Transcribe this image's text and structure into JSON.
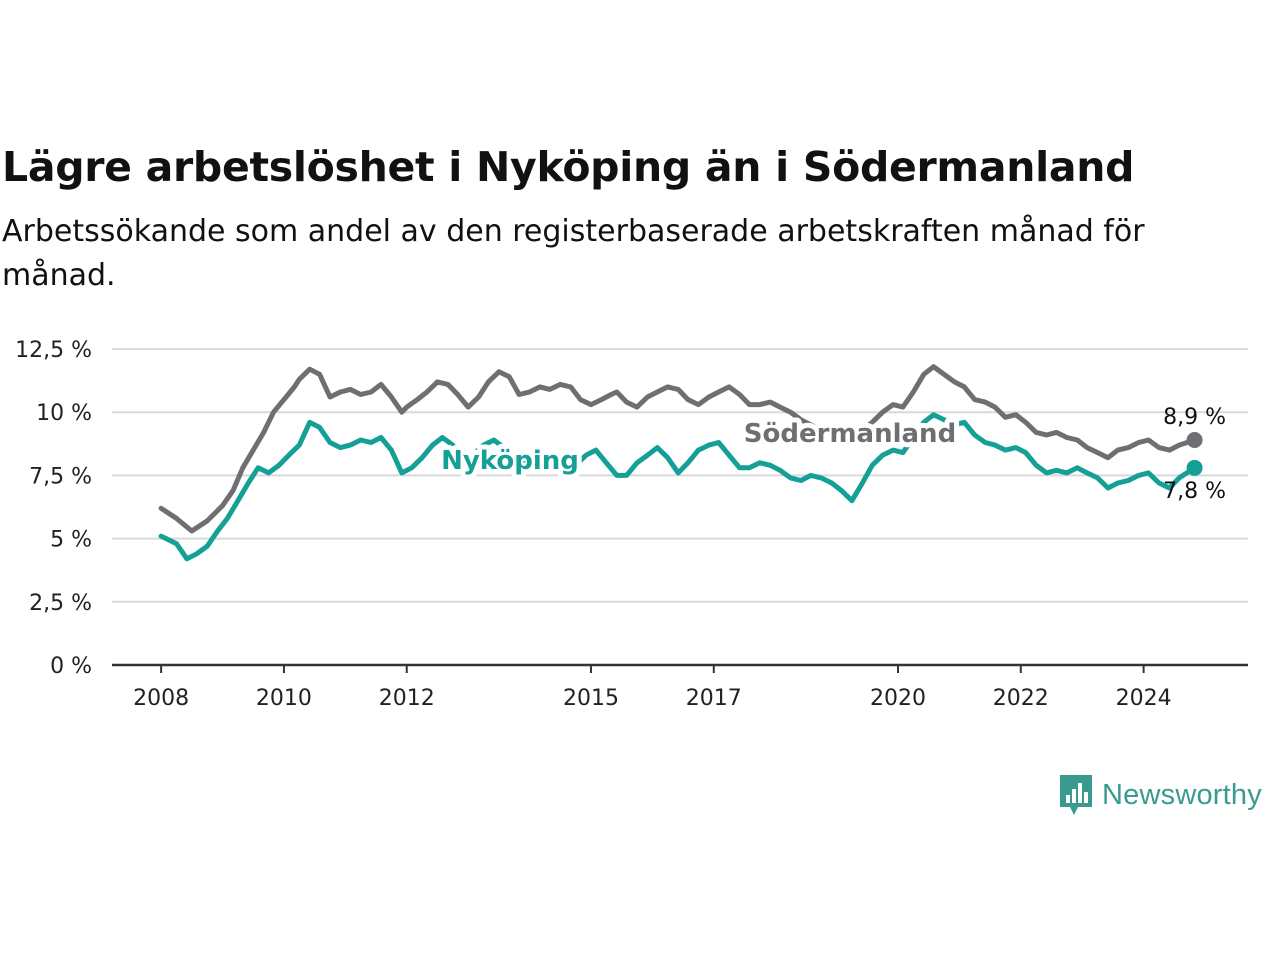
{
  "title": "Lägre arbetslöshet i Nyköping än i Södermanland",
  "subtitle": "Arbetssökande som andel av den registerbaserade arbetskraften månad för månad.",
  "brand": {
    "name": "Newsworthy",
    "color": "#3a9a90",
    "icon": "newsworthy-chart-bubble-icon"
  },
  "chart_data": {
    "type": "line",
    "ylim": [
      0,
      12.5
    ],
    "y_ticks": [
      {
        "value": 0,
        "label": "0 %"
      },
      {
        "value": 2.5,
        "label": "2,5 %"
      },
      {
        "value": 5,
        "label": "5 %"
      },
      {
        "value": 7.5,
        "label": "7,5 %"
      },
      {
        "value": 10,
        "label": "10 %"
      },
      {
        "value": 12.5,
        "label": "12,5 %"
      }
    ],
    "x_ticks": [
      {
        "value": 2008.0,
        "label": "2008"
      },
      {
        "value": 2010.0,
        "label": "2010"
      },
      {
        "value": 2012.0,
        "label": "2012"
      },
      {
        "value": 2015.0,
        "label": "2015"
      },
      {
        "value": 2017.0,
        "label": "2017"
      },
      {
        "value": 2020.0,
        "label": "2020"
      },
      {
        "value": 2022.0,
        "label": "2022"
      },
      {
        "value": 2024.0,
        "label": "2024"
      }
    ],
    "xlim": [
      2007.2,
      2025.7
    ],
    "grid": true,
    "series": [
      {
        "name": "Södermanland",
        "color": "#6e6e73",
        "end_label": "8,9 %",
        "points": [
          [
            2008.0,
            6.2
          ],
          [
            2008.25,
            5.8
          ],
          [
            2008.5,
            5.3
          ],
          [
            2008.75,
            5.7
          ],
          [
            2009.0,
            6.3
          ],
          [
            2009.17,
            6.9
          ],
          [
            2009.33,
            7.8
          ],
          [
            2009.5,
            8.5
          ],
          [
            2009.67,
            9.2
          ],
          [
            2009.83,
            10.0
          ],
          [
            2010.0,
            10.5
          ],
          [
            2010.17,
            11.0
          ],
          [
            2010.25,
            11.3
          ],
          [
            2010.42,
            11.7
          ],
          [
            2010.58,
            11.5
          ],
          [
            2010.75,
            10.6
          ],
          [
            2010.92,
            10.8
          ],
          [
            2011.08,
            10.9
          ],
          [
            2011.25,
            10.7
          ],
          [
            2011.42,
            10.8
          ],
          [
            2011.58,
            11.1
          ],
          [
            2011.75,
            10.6
          ],
          [
            2011.92,
            10.0
          ],
          [
            2012.0,
            10.2
          ],
          [
            2012.17,
            10.5
          ],
          [
            2012.33,
            10.8
          ],
          [
            2012.5,
            11.2
          ],
          [
            2012.67,
            11.1
          ],
          [
            2012.83,
            10.7
          ],
          [
            2013.0,
            10.2
          ],
          [
            2013.17,
            10.6
          ],
          [
            2013.33,
            11.2
          ],
          [
            2013.5,
            11.6
          ],
          [
            2013.67,
            11.4
          ],
          [
            2013.83,
            10.7
          ],
          [
            2014.0,
            10.8
          ],
          [
            2014.17,
            11.0
          ],
          [
            2014.33,
            10.9
          ],
          [
            2014.5,
            11.1
          ],
          [
            2014.67,
            11.0
          ],
          [
            2014.83,
            10.5
          ],
          [
            2015.0,
            10.3
          ],
          [
            2015.17,
            10.5
          ],
          [
            2015.33,
            10.7
          ],
          [
            2015.42,
            10.8
          ],
          [
            2015.58,
            10.4
          ],
          [
            2015.75,
            10.2
          ],
          [
            2015.92,
            10.6
          ],
          [
            2016.08,
            10.8
          ],
          [
            2016.25,
            11.0
          ],
          [
            2016.42,
            10.9
          ],
          [
            2016.58,
            10.5
          ],
          [
            2016.75,
            10.3
          ],
          [
            2016.92,
            10.6
          ],
          [
            2017.08,
            10.8
          ],
          [
            2017.25,
            11.0
          ],
          [
            2017.42,
            10.7
          ],
          [
            2017.58,
            10.3
          ],
          [
            2017.75,
            10.3
          ],
          [
            2017.92,
            10.4
          ],
          [
            2018.08,
            10.2
          ],
          [
            2018.25,
            10.0
          ],
          [
            2018.42,
            9.7
          ],
          [
            2018.58,
            9.5
          ],
          [
            2018.75,
            9.3
          ],
          [
            2018.92,
            9.4
          ],
          [
            2019.08,
            9.3
          ],
          [
            2019.25,
            9.1
          ],
          [
            2019.42,
            9.3
          ],
          [
            2019.58,
            9.6
          ],
          [
            2019.75,
            10.0
          ],
          [
            2019.92,
            10.3
          ],
          [
            2020.08,
            10.2
          ],
          [
            2020.25,
            10.8
          ],
          [
            2020.42,
            11.5
          ],
          [
            2020.58,
            11.8
          ],
          [
            2020.75,
            11.5
          ],
          [
            2020.92,
            11.2
          ],
          [
            2021.08,
            11.0
          ],
          [
            2021.25,
            10.5
          ],
          [
            2021.42,
            10.4
          ],
          [
            2021.58,
            10.2
          ],
          [
            2021.75,
            9.8
          ],
          [
            2021.92,
            9.9
          ],
          [
            2022.08,
            9.6
          ],
          [
            2022.25,
            9.2
          ],
          [
            2022.42,
            9.1
          ],
          [
            2022.58,
            9.2
          ],
          [
            2022.75,
            9.0
          ],
          [
            2022.92,
            8.9
          ],
          [
            2023.08,
            8.6
          ],
          [
            2023.25,
            8.4
          ],
          [
            2023.42,
            8.2
          ],
          [
            2023.58,
            8.5
          ],
          [
            2023.75,
            8.6
          ],
          [
            2023.92,
            8.8
          ],
          [
            2024.08,
            8.9
          ],
          [
            2024.25,
            8.6
          ],
          [
            2024.42,
            8.5
          ],
          [
            2024.58,
            8.7
          ],
          [
            2024.83,
            8.9
          ]
        ]
      },
      {
        "name": "Nyköping",
        "color": "#15a097",
        "end_label": "7,8 %",
        "points": [
          [
            2008.0,
            5.1
          ],
          [
            2008.25,
            4.8
          ],
          [
            2008.42,
            4.2
          ],
          [
            2008.58,
            4.4
          ],
          [
            2008.75,
            4.7
          ],
          [
            2008.92,
            5.3
          ],
          [
            2009.08,
            5.8
          ],
          [
            2009.25,
            6.5
          ],
          [
            2009.42,
            7.2
          ],
          [
            2009.58,
            7.8
          ],
          [
            2009.75,
            7.6
          ],
          [
            2009.92,
            7.9
          ],
          [
            2010.08,
            8.3
          ],
          [
            2010.25,
            8.7
          ],
          [
            2010.42,
            9.6
          ],
          [
            2010.58,
            9.4
          ],
          [
            2010.75,
            8.8
          ],
          [
            2010.92,
            8.6
          ],
          [
            2011.08,
            8.7
          ],
          [
            2011.25,
            8.9
          ],
          [
            2011.42,
            8.8
          ],
          [
            2011.58,
            9.0
          ],
          [
            2011.75,
            8.5
          ],
          [
            2011.92,
            7.6
          ],
          [
            2012.08,
            7.8
          ],
          [
            2012.25,
            8.2
          ],
          [
            2012.42,
            8.7
          ],
          [
            2012.58,
            9.0
          ],
          [
            2012.75,
            8.7
          ],
          [
            2012.92,
            8.0
          ],
          [
            2013.08,
            8.3
          ],
          [
            2013.25,
            8.7
          ],
          [
            2013.42,
            8.9
          ],
          [
            2013.58,
            8.6
          ],
          [
            2013.75,
            8.2
          ],
          [
            2013.92,
            8.1
          ],
          [
            2014.08,
            8.4
          ],
          [
            2014.25,
            8.2
          ],
          [
            2014.42,
            7.9
          ],
          [
            2014.58,
            7.6
          ],
          [
            2014.75,
            7.9
          ],
          [
            2014.92,
            8.3
          ],
          [
            2015.08,
            8.5
          ],
          [
            2015.25,
            8.0
          ],
          [
            2015.42,
            7.5
          ],
          [
            2015.58,
            7.5
          ],
          [
            2015.75,
            8.0
          ],
          [
            2015.92,
            8.3
          ],
          [
            2016.08,
            8.6
          ],
          [
            2016.25,
            8.2
          ],
          [
            2016.42,
            7.6
          ],
          [
            2016.58,
            8.0
          ],
          [
            2016.75,
            8.5
          ],
          [
            2016.92,
            8.7
          ],
          [
            2017.08,
            8.8
          ],
          [
            2017.25,
            8.3
          ],
          [
            2017.42,
            7.8
          ],
          [
            2017.58,
            7.8
          ],
          [
            2017.75,
            8.0
          ],
          [
            2017.92,
            7.9
          ],
          [
            2018.08,
            7.7
          ],
          [
            2018.25,
            7.4
          ],
          [
            2018.42,
            7.3
          ],
          [
            2018.58,
            7.5
          ],
          [
            2018.75,
            7.4
          ],
          [
            2018.92,
            7.2
          ],
          [
            2019.08,
            6.9
          ],
          [
            2019.25,
            6.5
          ],
          [
            2019.42,
            7.2
          ],
          [
            2019.58,
            7.9
          ],
          [
            2019.75,
            8.3
          ],
          [
            2019.92,
            8.5
          ],
          [
            2020.08,
            8.4
          ],
          [
            2020.25,
            9.0
          ],
          [
            2020.42,
            9.6
          ],
          [
            2020.58,
            9.9
          ],
          [
            2020.75,
            9.7
          ],
          [
            2020.92,
            9.5
          ],
          [
            2021.08,
            9.6
          ],
          [
            2021.25,
            9.1
          ],
          [
            2021.42,
            8.8
          ],
          [
            2021.58,
            8.7
          ],
          [
            2021.75,
            8.5
          ],
          [
            2021.92,
            8.6
          ],
          [
            2022.08,
            8.4
          ],
          [
            2022.25,
            7.9
          ],
          [
            2022.42,
            7.6
          ],
          [
            2022.58,
            7.7
          ],
          [
            2022.75,
            7.6
          ],
          [
            2022.92,
            7.8
          ],
          [
            2023.08,
            7.6
          ],
          [
            2023.25,
            7.4
          ],
          [
            2023.42,
            7.0
          ],
          [
            2023.58,
            7.2
          ],
          [
            2023.75,
            7.3
          ],
          [
            2023.92,
            7.5
          ],
          [
            2024.08,
            7.6
          ],
          [
            2024.25,
            7.2
          ],
          [
            2024.42,
            7.0
          ],
          [
            2024.58,
            7.4
          ],
          [
            2024.83,
            7.8
          ]
        ]
      }
    ]
  }
}
